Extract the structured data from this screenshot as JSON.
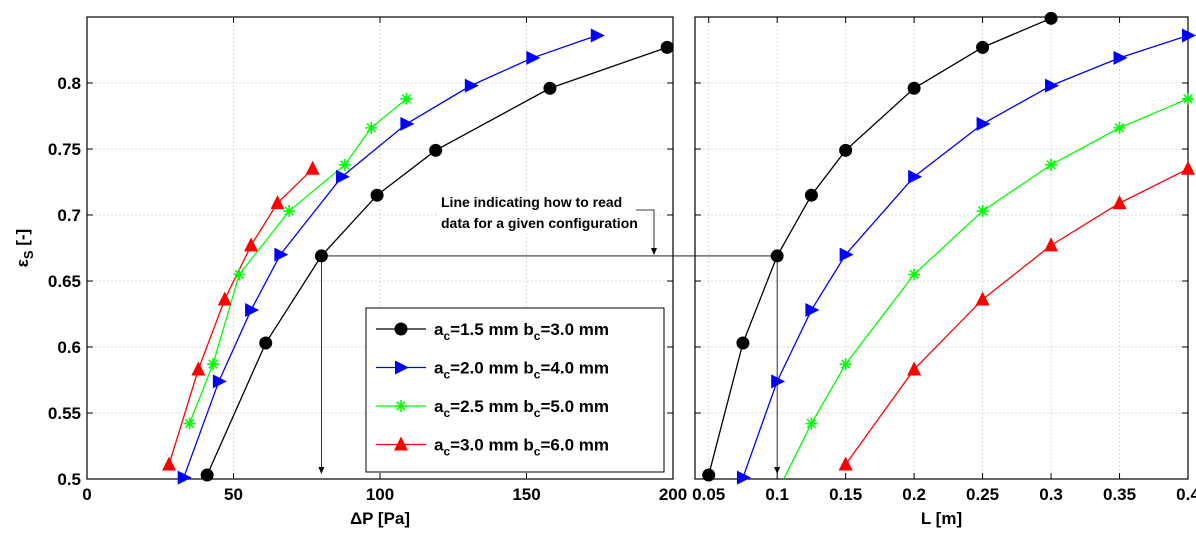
{
  "chart_data": [
    {
      "type": "line",
      "xlabel": "ΔP [Pa]",
      "ylabel_main": "ε",
      "ylabel_sub": "S",
      "ylabel_tail": " [-]",
      "xlim": [
        0,
        200
      ],
      "ylim": [
        0.5,
        0.85
      ],
      "xticks": [
        0,
        50,
        100,
        150,
        200
      ],
      "xtick_labels": [
        "0",
        "50",
        "100",
        "150",
        "200"
      ],
      "yticks": [
        0.5,
        0.55,
        0.6,
        0.65,
        0.7,
        0.75,
        0.8
      ],
      "ytick_labels": [
        "0.5",
        "0.55",
        "0.6",
        "0.65",
        "0.7",
        "0.75",
        "0.8"
      ],
      "grid": true,
      "legend_position": "bottom-right",
      "series": [
        {
          "name_a": "1.5",
          "name_b": "3.0",
          "color": "#000000",
          "marker": "circle",
          "x": [
            41,
            61,
            80,
            99,
            119,
            158,
            198
          ],
          "y": [
            0.503,
            0.603,
            0.669,
            0.715,
            0.749,
            0.796,
            0.827
          ]
        },
        {
          "name_a": "2.0",
          "name_b": "4.0",
          "color": "#0000ff",
          "marker": "triangle-right",
          "x": [
            33,
            45,
            56,
            66,
            87,
            109,
            131,
            152,
            174
          ],
          "y": [
            0.501,
            0.574,
            0.628,
            0.67,
            0.729,
            0.769,
            0.798,
            0.819,
            0.836
          ]
        },
        {
          "name_a": "2.5",
          "name_b": "5.0",
          "color": "#00ff00",
          "marker": "asterisk",
          "x": [
            35,
            43,
            52,
            69,
            88,
            97,
            109
          ],
          "y": [
            0.542,
            0.587,
            0.655,
            0.703,
            0.738,
            0.766,
            0.788
          ]
        },
        {
          "name_a": "3.0",
          "name_b": "6.0",
          "color": "#ff0000",
          "marker": "triangle-up",
          "x": [
            28,
            38,
            47,
            56,
            65,
            77
          ],
          "y": [
            0.511,
            0.583,
            0.636,
            0.677,
            0.709,
            0.735
          ]
        }
      ]
    },
    {
      "type": "line",
      "xlabel": "L [m]",
      "xlim": [
        0.04,
        0.4
      ],
      "ylim": [
        0.5,
        0.85
      ],
      "xticks": [
        0.05,
        0.1,
        0.15,
        0.2,
        0.25,
        0.3,
        0.35,
        0.4
      ],
      "xtick_labels": [
        "0.05",
        "0.1",
        "0.15",
        "0.2",
        "0.25",
        "0.3",
        "0.35",
        "0.4"
      ],
      "grid": true,
      "series": [
        {
          "color": "#000000",
          "marker": "circle",
          "x": [
            0.05,
            0.075,
            0.1,
            0.125,
            0.15,
            0.2,
            0.25,
            0.3
          ],
          "y": [
            0.503,
            0.603,
            0.669,
            0.715,
            0.749,
            0.796,
            0.827,
            0.849
          ]
        },
        {
          "color": "#0000ff",
          "marker": "triangle-right",
          "x": [
            0.075,
            0.1,
            0.125,
            0.15,
            0.2,
            0.25,
            0.3,
            0.35,
            0.4
          ],
          "y": [
            0.501,
            0.574,
            0.628,
            0.67,
            0.729,
            0.769,
            0.798,
            0.819,
            0.836
          ]
        },
        {
          "color": "#00ff00",
          "marker": "asterisk",
          "x": [
            0.1,
            0.125,
            0.15,
            0.2,
            0.25,
            0.3,
            0.35,
            0.4
          ],
          "y": [
            0.49,
            0.542,
            0.587,
            0.655,
            0.703,
            0.738,
            0.766,
            0.788
          ]
        },
        {
          "color": "#ff0000",
          "marker": "triangle-up",
          "x": [
            0.15,
            0.2,
            0.25,
            0.3,
            0.35,
            0.4
          ],
          "y": [
            0.511,
            0.583,
            0.636,
            0.677,
            0.709,
            0.735
          ]
        }
      ]
    }
  ],
  "legend_labels": {
    "a": "a",
    "c": "c",
    "eq_a": "=",
    "mm_b": " mm b",
    "eq_b": "=",
    "mm": " mm"
  },
  "annotation": {
    "line1": "Line indicating how  to read",
    "line2": "data for a given configuration",
    "read_at": {
      "dp": 80,
      "l": 0.1,
      "eps": 0.669
    }
  }
}
